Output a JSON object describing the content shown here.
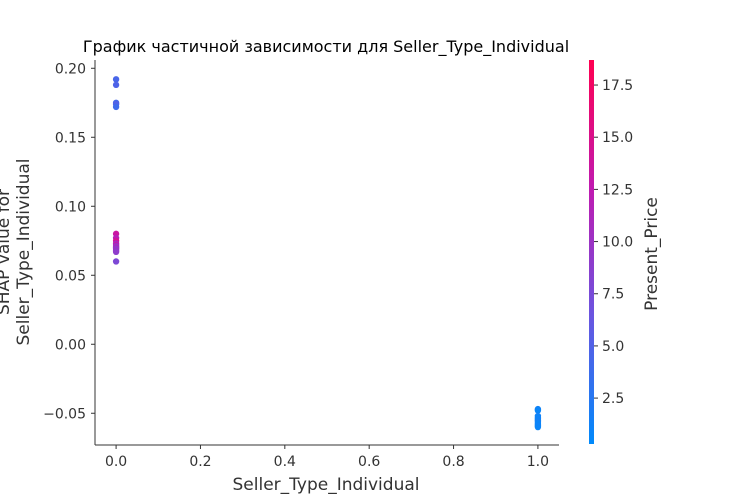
{
  "chart_data": {
    "type": "scatter",
    "title": "График частичной зависимости для Seller_Type_Individual",
    "xlabel": "Seller_Type_Individual",
    "ylabel_lines": [
      "SHAP value for",
      "Seller_Type_Individual"
    ],
    "xlim": [
      -0.05,
      1.05
    ],
    "ylim": [
      -0.073,
      0.206
    ],
    "xticks": [
      0.0,
      0.2,
      0.4,
      0.6,
      0.8,
      1.0
    ],
    "xtick_labels": [
      "0.0",
      "0.2",
      "0.4",
      "0.6",
      "0.8",
      "1.0"
    ],
    "yticks": [
      -0.05,
      0.0,
      0.05,
      0.1,
      0.15,
      0.2
    ],
    "ytick_labels": [
      "−0.05",
      "0.00",
      "0.05",
      "0.10",
      "0.15",
      "0.20"
    ],
    "grid": false,
    "colorbar": {
      "label": "Present_Price",
      "range": [
        0.3,
        18.7
      ],
      "ticks": [
        2.5,
        5.0,
        7.5,
        10.0,
        12.5,
        15.0,
        17.5
      ],
      "tick_labels": [
        "2.5",
        "5.0",
        "7.5",
        "10.0",
        "12.5",
        "15.0",
        "17.5"
      ],
      "colors": [
        "#008afb",
        "#6a55e0",
        "#c01ab0",
        "#ff0051"
      ]
    },
    "points": [
      {
        "x": 0,
        "y": 0.192,
        "c": 4.5
      },
      {
        "x": 0,
        "y": 0.188,
        "c": 4.8
      },
      {
        "x": 0,
        "y": 0.175,
        "c": 4.2
      },
      {
        "x": 0,
        "y": 0.174,
        "c": 5.0
      },
      {
        "x": 0,
        "y": 0.172,
        "c": 3.9
      },
      {
        "x": 0,
        "y": 0.08,
        "c": 13.5
      },
      {
        "x": 0,
        "y": 0.077,
        "c": 11.8
      },
      {
        "x": 0,
        "y": 0.075,
        "c": 14.2
      },
      {
        "x": 0,
        "y": 0.073,
        "c": 10.5
      },
      {
        "x": 0,
        "y": 0.072,
        "c": 12.8
      },
      {
        "x": 0,
        "y": 0.071,
        "c": 9.5
      },
      {
        "x": 0,
        "y": 0.07,
        "c": 11.0
      },
      {
        "x": 0,
        "y": 0.069,
        "c": 8.8
      },
      {
        "x": 0,
        "y": 0.068,
        "c": 10.0
      },
      {
        "x": 0,
        "y": 0.067,
        "c": 9.0
      },
      {
        "x": 0,
        "y": 0.06,
        "c": 7.8
      },
      {
        "x": 1,
        "y": -0.047,
        "c": 1.2
      },
      {
        "x": 1,
        "y": -0.048,
        "c": 0.9
      },
      {
        "x": 1,
        "y": -0.052,
        "c": 1.5
      },
      {
        "x": 1,
        "y": -0.053,
        "c": 0.8
      },
      {
        "x": 1,
        "y": -0.054,
        "c": 1.4
      },
      {
        "x": 1,
        "y": -0.055,
        "c": 1.0
      },
      {
        "x": 1,
        "y": -0.056,
        "c": 1.6
      },
      {
        "x": 1,
        "y": -0.057,
        "c": 1.1
      },
      {
        "x": 1,
        "y": -0.058,
        "c": 0.7
      },
      {
        "x": 1,
        "y": -0.059,
        "c": 1.3
      },
      {
        "x": 1,
        "y": -0.06,
        "c": 0.9
      }
    ]
  }
}
